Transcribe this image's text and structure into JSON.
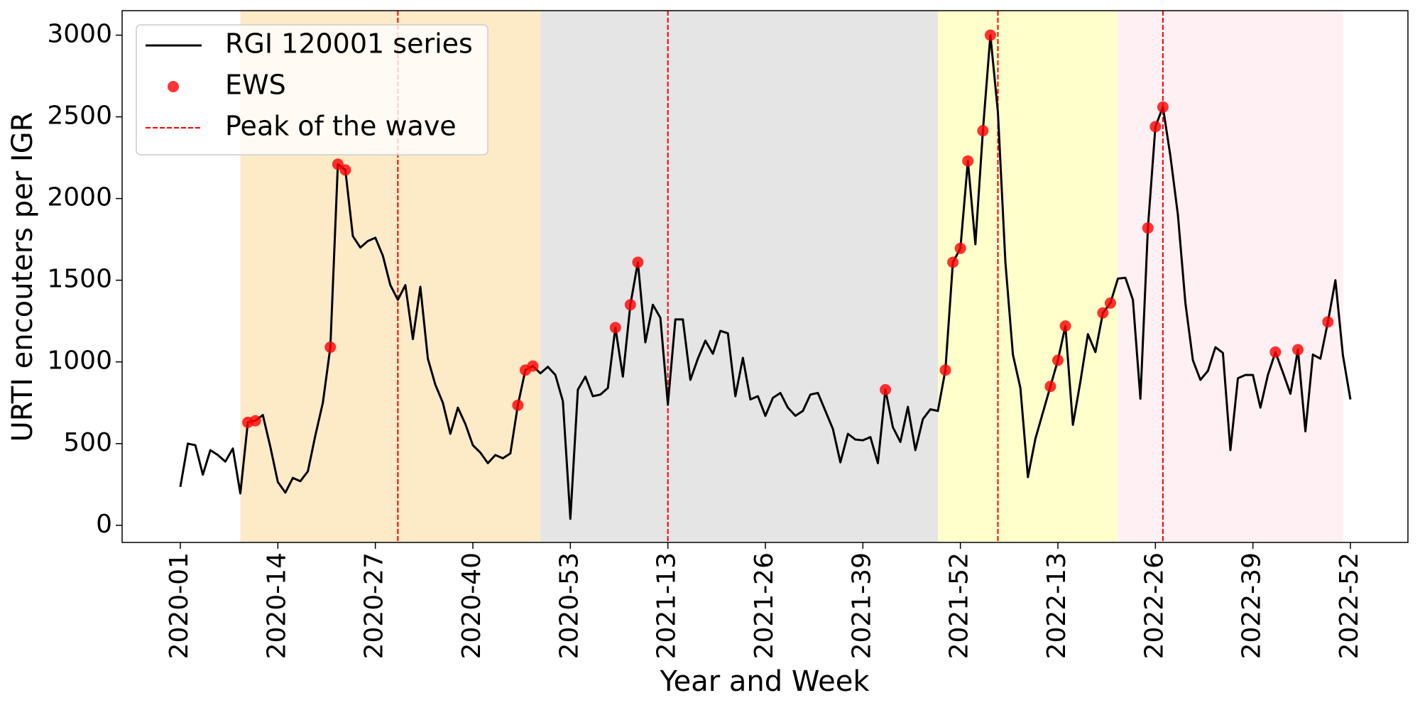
{
  "chart_data": {
    "type": "line",
    "xlabel": "Year and Week",
    "ylabel": "URTI encouters per IGR",
    "categories": [
      "2020-01",
      null,
      null,
      null,
      null,
      null,
      null,
      null,
      null,
      null,
      null,
      null,
      null,
      "2020-14",
      null,
      null,
      null,
      null,
      null,
      null,
      null,
      null,
      null,
      null,
      null,
      null,
      "2020-27",
      null,
      null,
      null,
      null,
      null,
      null,
      null,
      null,
      null,
      null,
      null,
      null,
      "2020-40",
      null,
      null,
      null,
      null,
      null,
      null,
      null,
      null,
      null,
      null,
      null,
      null,
      "2020-53",
      null,
      null,
      null,
      null,
      null,
      null,
      null,
      null,
      null,
      null,
      null,
      null,
      "2021-13",
      null,
      null,
      null,
      null,
      null,
      null,
      null,
      null,
      null,
      null,
      null,
      null,
      "2021-26",
      null,
      null,
      null,
      null,
      null,
      null,
      null,
      null,
      null,
      null,
      null,
      null,
      "2021-39",
      null,
      null,
      null,
      null,
      null,
      null,
      null,
      null,
      null,
      null,
      null,
      null,
      "2021-52",
      null,
      null,
      null,
      null,
      null,
      null,
      null,
      null,
      null,
      null,
      null,
      null,
      "2022-13",
      null,
      null,
      null,
      null,
      null,
      null,
      null,
      null,
      null,
      null,
      null,
      null,
      "2022-26",
      null,
      null,
      null,
      null,
      null,
      null,
      null,
      null,
      null,
      null,
      null,
      null,
      "2022-39",
      null,
      null,
      null,
      null,
      null,
      null,
      null,
      null,
      null,
      null,
      null,
      null,
      "2022-52"
    ],
    "ylim": [
      -105,
      3150
    ],
    "yticks": [
      0,
      500,
      1000,
      1500,
      2000,
      2500,
      3000
    ],
    "legend": "upper left",
    "series": [
      {
        "name": "RGI 120001 series",
        "type": "line",
        "color": "#000000",
        "values": [
          235,
          500,
          490,
          310,
          460,
          430,
          390,
          470,
          195,
          630,
          640,
          675,
          480,
          265,
          200,
          290,
          270,
          330,
          550,
          750,
          1090,
          2210,
          2175,
          1770,
          1700,
          1740,
          1760,
          1650,
          1470,
          1380,
          1470,
          1140,
          1460,
          1020,
          860,
          750,
          560,
          720,
          620,
          490,
          445,
          380,
          430,
          410,
          440,
          735,
          950,
          975,
          930,
          970,
          920,
          760,
          40,
          830,
          910,
          790,
          800,
          840,
          1210,
          910,
          1350,
          1610,
          1120,
          1350,
          1270,
          740,
          1260,
          1260,
          890,
          1020,
          1130,
          1050,
          1190,
          1175,
          790,
          1025,
          770,
          790,
          670,
          780,
          810,
          720,
          670,
          700,
          800,
          810,
          700,
          590,
          385,
          560,
          525,
          520,
          540,
          380,
          830,
          600,
          510,
          725,
          460,
          650,
          710,
          700,
          950,
          1610,
          1695,
          2230,
          1720,
          2415,
          3000,
          2530,
          1610,
          1045,
          840,
          295,
          530,
          690,
          850,
          1010,
          1220,
          615,
          880,
          1170,
          1060,
          1300,
          1360,
          1510,
          1515,
          1380,
          775,
          1820,
          2440,
          2560,
          2260,
          1900,
          1360,
          1010,
          890,
          945,
          1090,
          1055,
          460,
          900,
          920,
          920,
          720,
          920,
          1060,
          935,
          805,
          1075,
          575,
          1045,
          1020,
          1245,
          1500,
          1040,
          770
        ]
      },
      {
        "name": "EWS",
        "type": "scatter",
        "color": "#ff0000",
        "values": [
          null,
          null,
          null,
          null,
          null,
          null,
          null,
          null,
          null,
          630,
          640,
          null,
          null,
          null,
          null,
          null,
          null,
          null,
          null,
          null,
          1090,
          2210,
          2175,
          null,
          null,
          null,
          null,
          null,
          null,
          null,
          null,
          null,
          null,
          null,
          null,
          null,
          null,
          null,
          null,
          null,
          null,
          null,
          null,
          null,
          null,
          735,
          950,
          975,
          null,
          null,
          null,
          null,
          null,
          null,
          null,
          null,
          null,
          null,
          1210,
          null,
          1350,
          1610,
          null,
          null,
          null,
          null,
          null,
          null,
          null,
          null,
          null,
          null,
          null,
          null,
          null,
          null,
          null,
          null,
          null,
          null,
          null,
          null,
          null,
          null,
          null,
          null,
          null,
          null,
          null,
          null,
          null,
          null,
          null,
          null,
          830,
          null,
          null,
          null,
          null,
          null,
          null,
          null,
          950,
          1610,
          1695,
          2230,
          null,
          2415,
          3000,
          null,
          null,
          null,
          null,
          null,
          null,
          null,
          850,
          1010,
          1220,
          null,
          null,
          null,
          null,
          1300,
          1360,
          null,
          null,
          null,
          null,
          1820,
          2440,
          2560,
          null,
          null,
          null,
          null,
          null,
          null,
          null,
          null,
          null,
          null,
          null,
          null,
          null,
          null,
          1060,
          null,
          null,
          1075,
          null,
          null,
          null,
          1245,
          null,
          null,
          null
        ]
      }
    ],
    "peaks": {
      "name": "Peak of the wave",
      "color": "#ff0000",
      "at": [
        29,
        65,
        109,
        131
      ]
    },
    "shaded_regions": [
      {
        "start": 8,
        "end": 48,
        "color": "#fdebc8"
      },
      {
        "start": 48,
        "end": 101,
        "color": "#e5e5e5"
      },
      {
        "start": 101,
        "end": 125,
        "color": "#ffffcc"
      },
      {
        "start": 125,
        "end": 155,
        "color": "#fff0f3"
      }
    ]
  }
}
